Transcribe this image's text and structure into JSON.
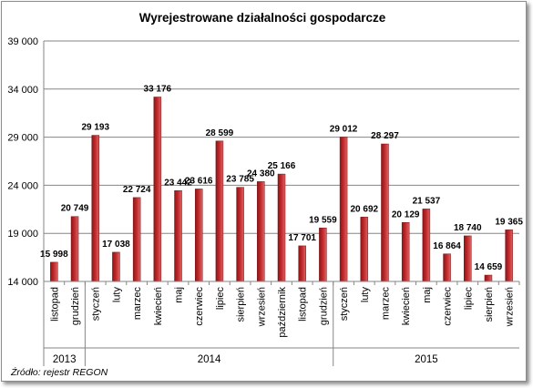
{
  "chart_data": {
    "type": "bar",
    "title": "Wyrejestrowane działalności gospodarcze",
    "source": "Źródło: rejestr REGON",
    "ylim": [
      14000,
      39000
    ],
    "y_ticks": [
      "14 000",
      "19 000",
      "24 000",
      "29 000",
      "34 000",
      "39 000"
    ],
    "y_tick_values": [
      14000,
      19000,
      24000,
      29000,
      34000,
      39000
    ],
    "grid": true,
    "legend": "none",
    "bar_color": "#c0282a",
    "categories": [
      "listopad",
      "grudzień",
      "styczeń",
      "luty",
      "marzec",
      "kwiecień",
      "maj",
      "czerwiec",
      "lipiec",
      "sierpień",
      "wrzesień",
      "październik",
      "listopad",
      "grudzień",
      "styczeń",
      "luty",
      "marzec",
      "kwiecień",
      "maj",
      "czerwiec",
      "lipiec",
      "sierpień",
      "wrzesień"
    ],
    "values": [
      15998,
      20749,
      29193,
      17038,
      22724,
      33176,
      23442,
      23616,
      28599,
      23785,
      24380,
      25166,
      17701,
      19559,
      29012,
      20692,
      28297,
      20129,
      21537,
      16864,
      18740,
      14659,
      19365
    ],
    "value_labels": [
      "15 998",
      "20 749",
      "29 193",
      "17 038",
      "22 724",
      "33 176",
      "23 442",
      "23 616",
      "28 599",
      "23 785",
      "24 380",
      "25 166",
      "17 701",
      "19 559",
      "29 012",
      "20 692",
      "28 297",
      "20 129",
      "21 537",
      "16 864",
      "18 740",
      "14 659",
      "19 365"
    ],
    "groups": [
      {
        "label": "2013",
        "count": 2
      },
      {
        "label": "2014",
        "count": 12
      },
      {
        "label": "2015",
        "count": 9
      }
    ]
  }
}
